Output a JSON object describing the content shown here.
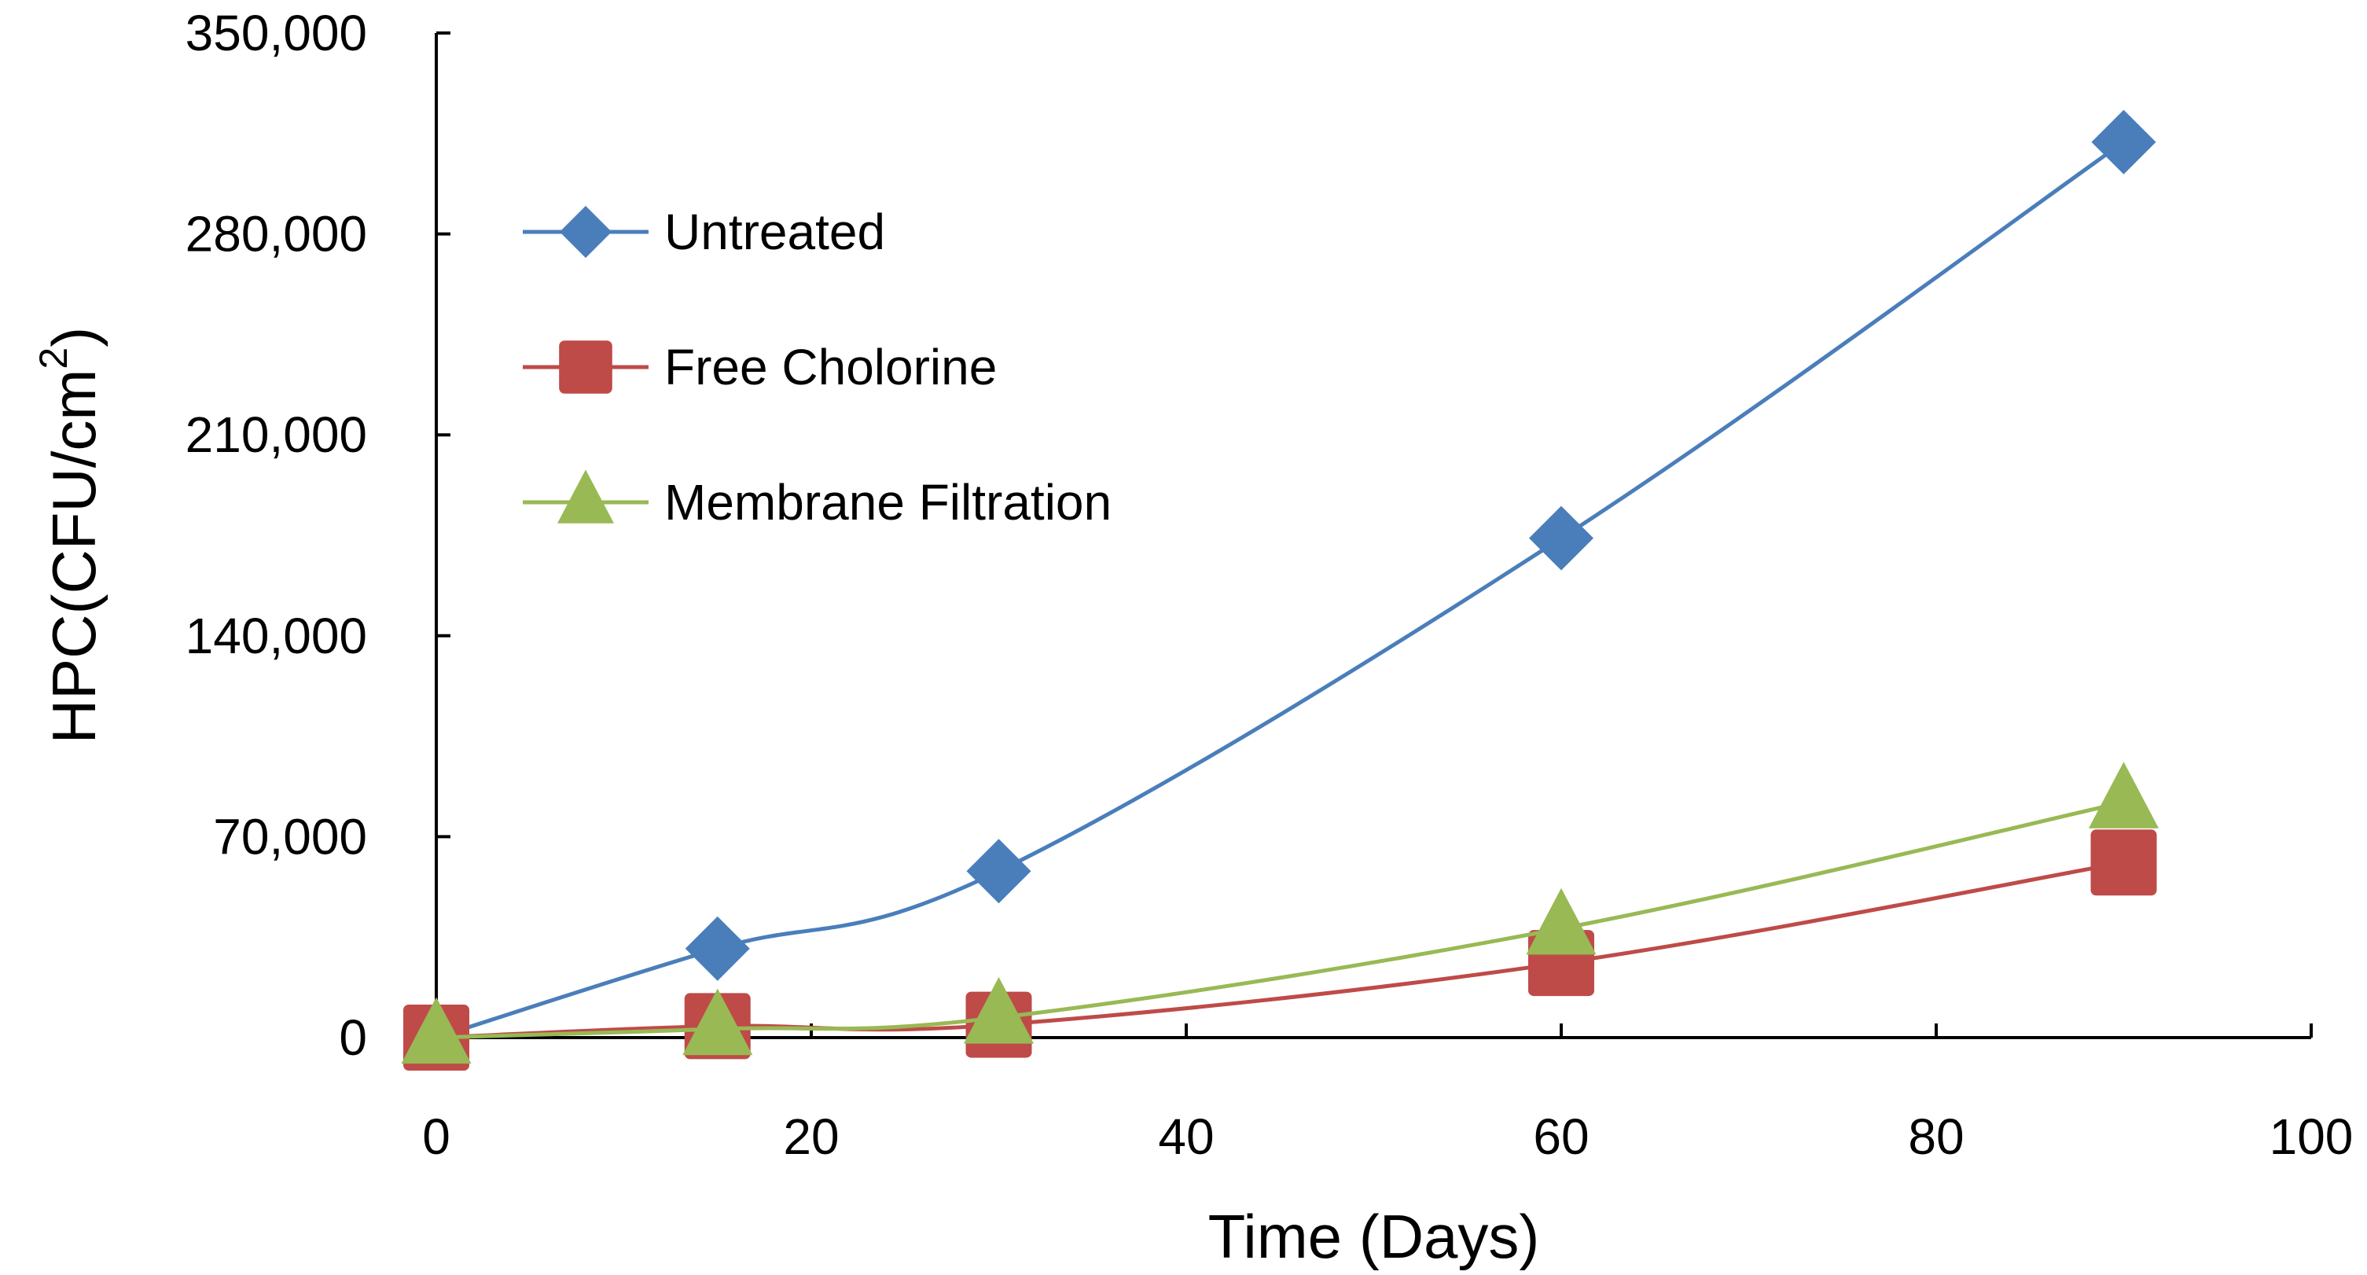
{
  "chart_data": {
    "type": "line",
    "title": "",
    "xlabel": "Time (Days)",
    "ylabel": "HPC(CFU/cm",
    "ylabel_superscript": "2",
    "ylabel_suffix": ")",
    "xlim": [
      0,
      100
    ],
    "ylim": [
      0,
      350000
    ],
    "x_ticks": [
      0,
      20,
      40,
      60,
      80,
      100
    ],
    "y_ticks": [
      0,
      70000,
      140000,
      210000,
      280000,
      350000
    ],
    "x_tick_labels": [
      "0",
      "20",
      "40",
      "60",
      "80",
      "100"
    ],
    "y_tick_labels": [
      "0",
      "70,000",
      "140,000",
      "210,000",
      "280,000",
      "350,000"
    ],
    "grid": false,
    "legend_position": "top-left",
    "x": [
      0,
      15,
      30,
      60,
      90
    ],
    "series": [
      {
        "name": "Untreated",
        "marker": "diamond",
        "color": "#4a7ebb",
        "values": [
          0,
          31000,
          58000,
          174000,
          312000
        ]
      },
      {
        "name": "Free Cholorine",
        "marker": "square",
        "color": "#be4b48",
        "values": [
          0,
          4000,
          4500,
          26000,
          61000
        ]
      },
      {
        "name": "Membrane Filtration",
        "marker": "triangle",
        "color": "#98b954",
        "values": [
          0,
          3000,
          7000,
          38000,
          82000
        ]
      }
    ]
  }
}
